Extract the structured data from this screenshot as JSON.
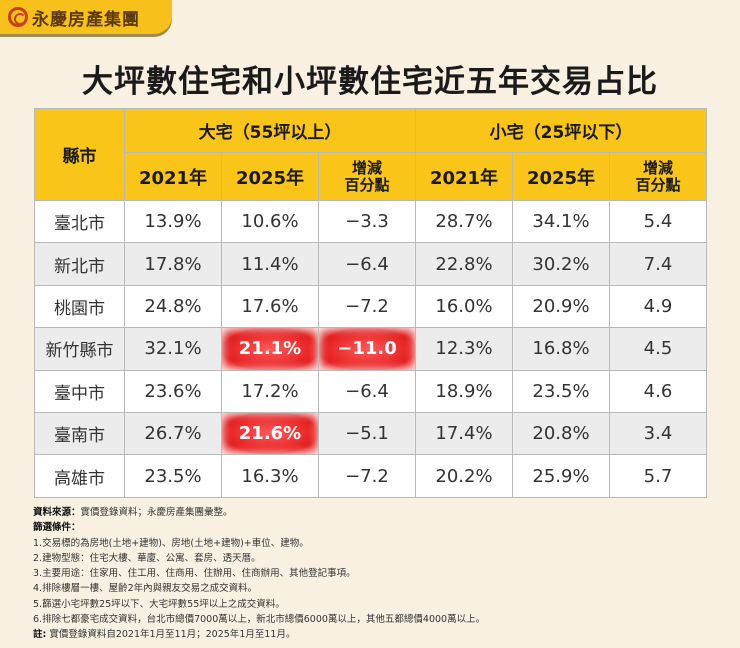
{
  "brand": {
    "name": "永慶房產集團",
    "color": "#f7c01a"
  },
  "title": {
    "normal": "大坪數住宅和小坪數住宅",
    "highlight": "近五年交易占比"
  },
  "table": {
    "city_header": "縣市",
    "groups": [
      "大宅（55坪以上）",
      "小宅（25坪以下）"
    ],
    "columns": [
      "2021年",
      "2025年",
      "增減\n百分點",
      "2021年",
      "2025年",
      "增減\n百分點"
    ],
    "rows": [
      {
        "city": "臺北市",
        "values": [
          "13.9%",
          "10.6%",
          "−3.3",
          "28.7%",
          "34.1%",
          "5.4"
        ],
        "highlight": []
      },
      {
        "city": "新北市",
        "values": [
          "17.8%",
          "11.4%",
          "−6.4",
          "22.8%",
          "30.2%",
          "7.4"
        ],
        "highlight": []
      },
      {
        "city": "桃園市",
        "values": [
          "24.8%",
          "17.6%",
          "−7.2",
          "16.0%",
          "20.9%",
          "4.9"
        ],
        "highlight": []
      },
      {
        "city": "新竹縣市",
        "values": [
          "32.1%",
          "21.1%",
          "−11.0",
          "12.3%",
          "16.8%",
          "4.5"
        ],
        "highlight": [
          1,
          2
        ]
      },
      {
        "city": "臺中市",
        "values": [
          "23.6%",
          "17.2%",
          "−6.4",
          "18.9%",
          "23.5%",
          "4.6"
        ],
        "highlight": []
      },
      {
        "city": "臺南市",
        "values": [
          "26.7%",
          "21.6%",
          "−5.1",
          "17.4%",
          "20.8%",
          "3.4"
        ],
        "highlight": [
          1
        ]
      },
      {
        "city": "高雄市",
        "values": [
          "23.5%",
          "16.3%",
          "−7.2",
          "20.2%",
          "25.9%",
          "5.7"
        ],
        "highlight": []
      }
    ],
    "header_color": "#f8c518",
    "highlight_color": "#e31b1b"
  },
  "notes": {
    "source_label": "資料來源：",
    "source": "實價登錄資料；永慶房產集團彙整。",
    "filter_label": "篩選條件：",
    "items": [
      "1.交易標的為房地(土地+建物)、房地(土地+建物)+車位、建物。",
      "2.建物型態：住宅大樓、華廈、公寓、套房、透天厝。",
      "3.主要用途：住家用、住工用、住商用、住辦用、住商辦用、其他登記事項。",
      "4.排除樓層一樓、屋齡2年內與親友交易之成交資料。",
      "5.篩選小宅坪數25坪以下、大宅坪數55坪以上之成交資料。",
      "6.排除七都豪宅成交資料，台北市總價7000萬以上，新北市總價6000萬以上，其他五都總價4000萬以上。"
    ],
    "note_label": "註:",
    "note": " 實價登錄資料自2021年1月至11月；2025年1月至11月。"
  }
}
